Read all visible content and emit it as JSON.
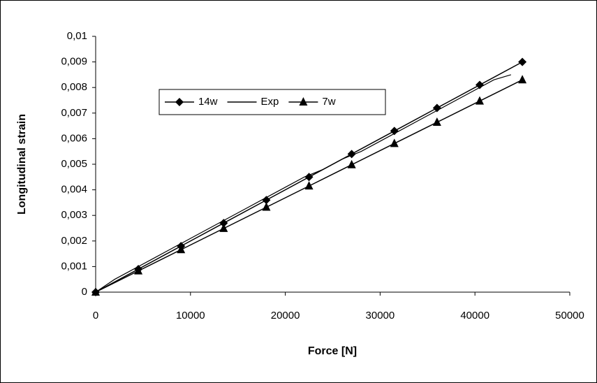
{
  "chart_data": {
    "type": "line",
    "x_label": "Force [N]",
    "y_label": "Longitudinal strain",
    "xlim": [
      0,
      50000
    ],
    "xticks": [
      0,
      10000,
      20000,
      30000,
      40000,
      50000
    ],
    "ylim": [
      0,
      0.01
    ],
    "yticks": [
      0,
      {
        "value": 0.001,
        "label": "0,001"
      },
      {
        "value": 0.002,
        "label": "0,002"
      },
      {
        "value": 0.003,
        "label": "0,003"
      },
      {
        "value": 0.004,
        "label": "0,004"
      },
      {
        "value": 0.005,
        "label": "0,005"
      },
      {
        "value": 0.006,
        "label": "0,006"
      },
      {
        "value": 0.007,
        "label": "0,007"
      },
      {
        "value": 0.008,
        "label": "0,008"
      },
      {
        "value": 0.009,
        "label": "0,009"
      },
      {
        "value": 0.01,
        "label": "0,01"
      }
    ],
    "grid": false,
    "series": [
      {
        "name": "14w",
        "color": "#000000",
        "marker": "diamond",
        "x": [
          0,
          4500,
          9000,
          13500,
          18000,
          22500,
          27000,
          31500,
          36000,
          40500,
          45000
        ],
        "values": [
          0,
          0.0009,
          0.0018,
          0.0027,
          0.0036,
          0.0045,
          0.0054,
          0.0063,
          0.0072,
          0.0081,
          0.009
        ]
      },
      {
        "name": "Exp",
        "color": "#000000",
        "marker": "none",
        "x": [
          0,
          2000,
          4000,
          6000,
          8000,
          10000,
          12000,
          14000,
          16000,
          18000,
          20000,
          22000,
          24000,
          26000,
          28000,
          30000,
          32000,
          34000,
          36000,
          38000,
          40000,
          42000,
          43800
        ],
        "values": [
          0,
          0.0005,
          0.0009,
          0.0013,
          0.0017,
          0.0021,
          0.0025,
          0.0029,
          0.0033,
          0.0037,
          0.0041,
          0.0045,
          0.0048,
          0.0052,
          0.0055,
          0.0059,
          0.0063,
          0.0067,
          0.0071,
          0.0075,
          0.0079,
          0.0083,
          0.0085
        ]
      },
      {
        "name": "7w",
        "color": "#000000",
        "marker": "triangle",
        "x": [
          0,
          4500,
          9000,
          13500,
          18000,
          22500,
          27000,
          31500,
          36000,
          40500,
          45000
        ],
        "values": [
          0,
          0.00083,
          0.00166,
          0.00249,
          0.00332,
          0.00415,
          0.00498,
          0.00581,
          0.00664,
          0.00747,
          0.0083
        ]
      }
    ]
  }
}
